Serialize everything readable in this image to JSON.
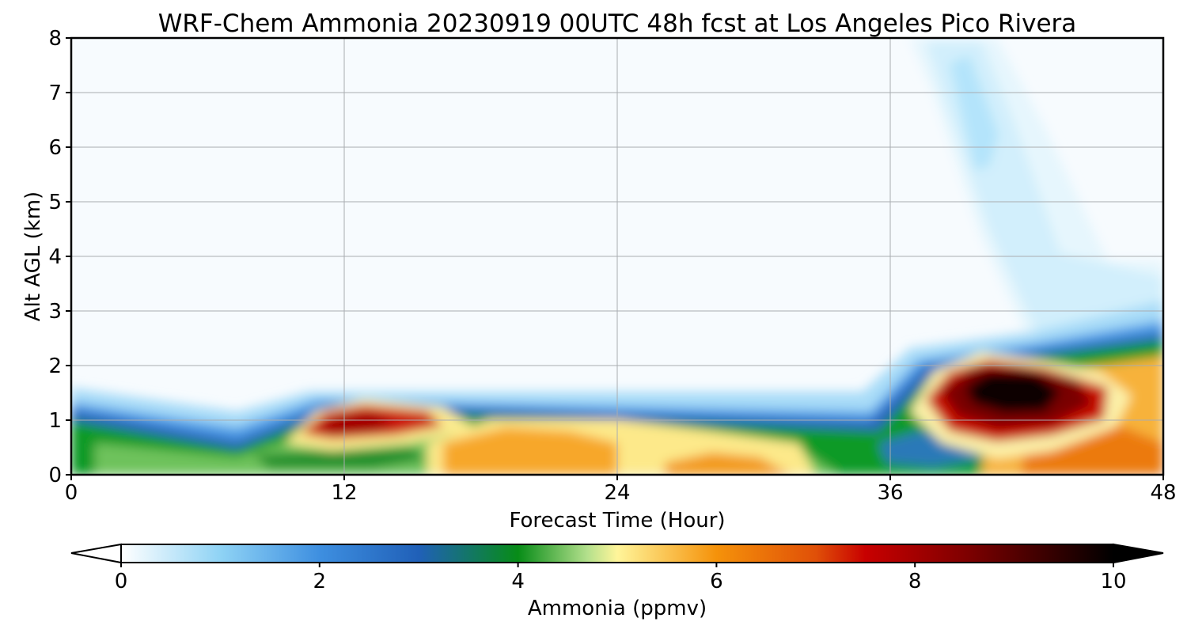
{
  "chart_data": {
    "type": "heatmap",
    "title": "WRF-Chem Ammonia  20230919 00UTC 48h fcst at Los Angeles Pico Rivera",
    "xlabel": "Forecast Time (Hour)",
    "ylabel": "Alt AGL (km)",
    "xlim": [
      0,
      48
    ],
    "ylim": [
      0,
      8
    ],
    "xticks": [
      0,
      12,
      24,
      36,
      48
    ],
    "yticks": [
      0,
      1,
      2,
      3,
      4,
      5,
      6,
      7,
      8
    ],
    "grid": true,
    "colorbar": {
      "label": "Ammonia  (ppmv)",
      "min": 0,
      "max": 10,
      "ticks": [
        0,
        2,
        4,
        6,
        8,
        10
      ],
      "extend": "both",
      "stops": [
        {
          "value": 0,
          "color": "#ffffff"
        },
        {
          "value": 1,
          "color": "#8fd3f5"
        },
        {
          "value": 2,
          "color": "#3e8fe0"
        },
        {
          "value": 3,
          "color": "#2060b8"
        },
        {
          "value": 4,
          "color": "#078c17"
        },
        {
          "value": 4.7,
          "color": "#b4e08c"
        },
        {
          "value": 5,
          "color": "#fff59a"
        },
        {
          "value": 6,
          "color": "#f5920a"
        },
        {
          "value": 7,
          "color": "#e05008"
        },
        {
          "value": 7.5,
          "color": "#c80000"
        },
        {
          "value": 8.5,
          "color": "#800000"
        },
        {
          "value": 10,
          "color": "#000000"
        }
      ]
    },
    "regions": [
      {
        "description": "background",
        "hour_range": [
          0,
          48
        ],
        "alt_range_km": [
          0,
          8
        ],
        "value": 0.1
      },
      {
        "description": "boundary layer blue top",
        "hour_range": [
          0,
          36
        ],
        "alt_range_km": [
          0.9,
          1.3
        ],
        "value": 2.5
      },
      {
        "description": "boundary layer green",
        "hour_range": [
          0,
          12
        ],
        "alt_range_km": [
          0.2,
          1
        ],
        "value": 4
      },
      {
        "description": "max near 12h",
        "hour": 12,
        "alt_km": 0.9,
        "value": 7.8
      },
      {
        "description": "warm layer 15-22h",
        "hour": 19,
        "alt_km": 0.4,
        "value": 6.3
      },
      {
        "description": "warm layer 28h",
        "hour": 28,
        "alt_km": 0.1,
        "value": 6.2
      },
      {
        "description": "dark blue core near 38h",
        "hour": 38,
        "alt_km": 0.5,
        "value": 2.7
      },
      {
        "description": "maximum near 41h",
        "hour": 41,
        "alt_km": 1.5,
        "value": 10
      },
      {
        "description": "elevated plume",
        "hour_range": [
          38,
          45
        ],
        "alt_range_km": [
          3,
          8
        ],
        "value": 1.2
      },
      {
        "description": "surface band 42-48h",
        "hour_range": [
          42,
          48
        ],
        "alt_range_km": [
          0,
          2.3
        ],
        "value": 6.6
      }
    ]
  }
}
